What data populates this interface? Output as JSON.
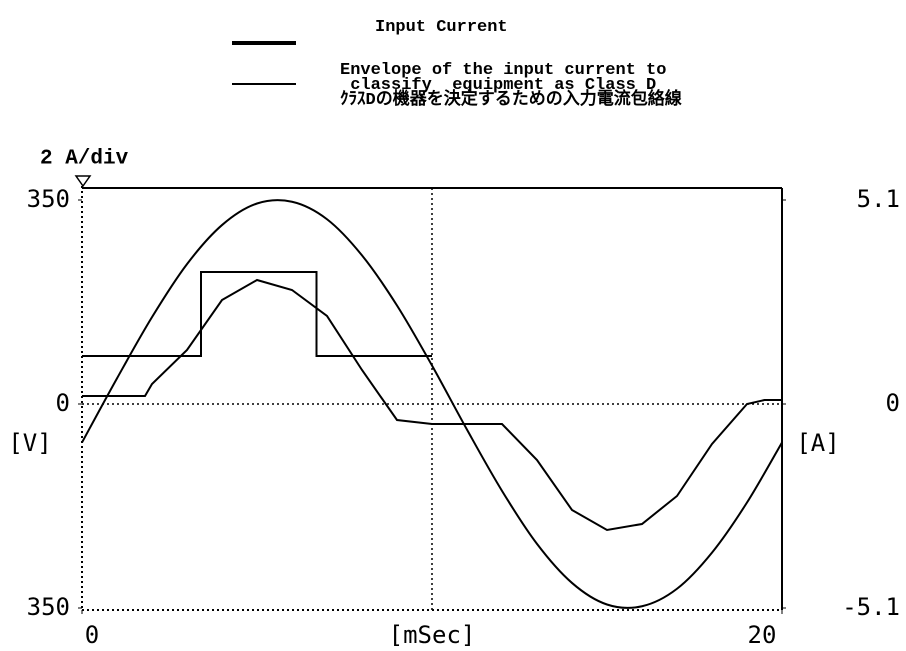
{
  "chart_data": {
    "type": "line",
    "scale_label": "2 A/div",
    "ylabel": "[V]",
    "y2label": "[A]",
    "xlabel": "[mSec]",
    "xlim": [
      0,
      20
    ],
    "xticks": [
      0,
      20
    ],
    "ylim": [
      -350,
      350
    ],
    "yticks": [
      350,
      0,
      {
        "value": -350,
        "label": "350"
      }
    ],
    "y2lim": [
      -5.1,
      5.1
    ],
    "y2ticks": [
      5.1,
      0,
      -5.1
    ],
    "series": [
      {
        "color": "#000000",
        "smooth": true,
        "x": [
          0,
          1,
          2,
          3,
          4,
          5,
          6,
          7,
          8,
          9,
          10,
          11,
          12,
          13,
          14,
          15,
          16,
          17,
          18,
          19,
          20
        ],
        "values": [
          -66,
          44,
          149,
          240,
          307,
          344,
          347,
          317,
          255,
          169,
          66,
          -44,
          -149,
          -240,
          -307,
          -344,
          -347,
          -317,
          -255,
          -169,
          -66
        ]
      },
      {
        "name": "Input Current",
        "color": "#000000",
        "axis": "y2",
        "x": [
          0,
          1.8,
          2,
          3,
          4,
          5,
          6,
          7,
          8,
          9,
          10,
          11,
          12,
          13,
          14,
          15,
          16,
          17,
          18,
          19,
          19.5,
          20
        ],
        "values": [
          0.2,
          0.2,
          0.5,
          1.35,
          2.6,
          3.1,
          2.85,
          2.2,
          0.85,
          -0.4,
          -0.5,
          -0.5,
          -0.5,
          -1.4,
          -2.65,
          -3.15,
          -3.0,
          -2.3,
          -1.0,
          0,
          0.1,
          0.1
        ]
      },
      {
        "name": "Envelope of the input current to\n classify  equipment as Class D\nｸﾗｽDの機器を決定するための入力電流包絡線",
        "color": "#000000",
        "axis": "y2",
        "x": [
          0,
          3.4,
          3.4,
          6.7,
          6.7,
          10
        ],
        "values": [
          1.2,
          1.2,
          3.3,
          3.3,
          1.2,
          1.2
        ]
      }
    ]
  }
}
